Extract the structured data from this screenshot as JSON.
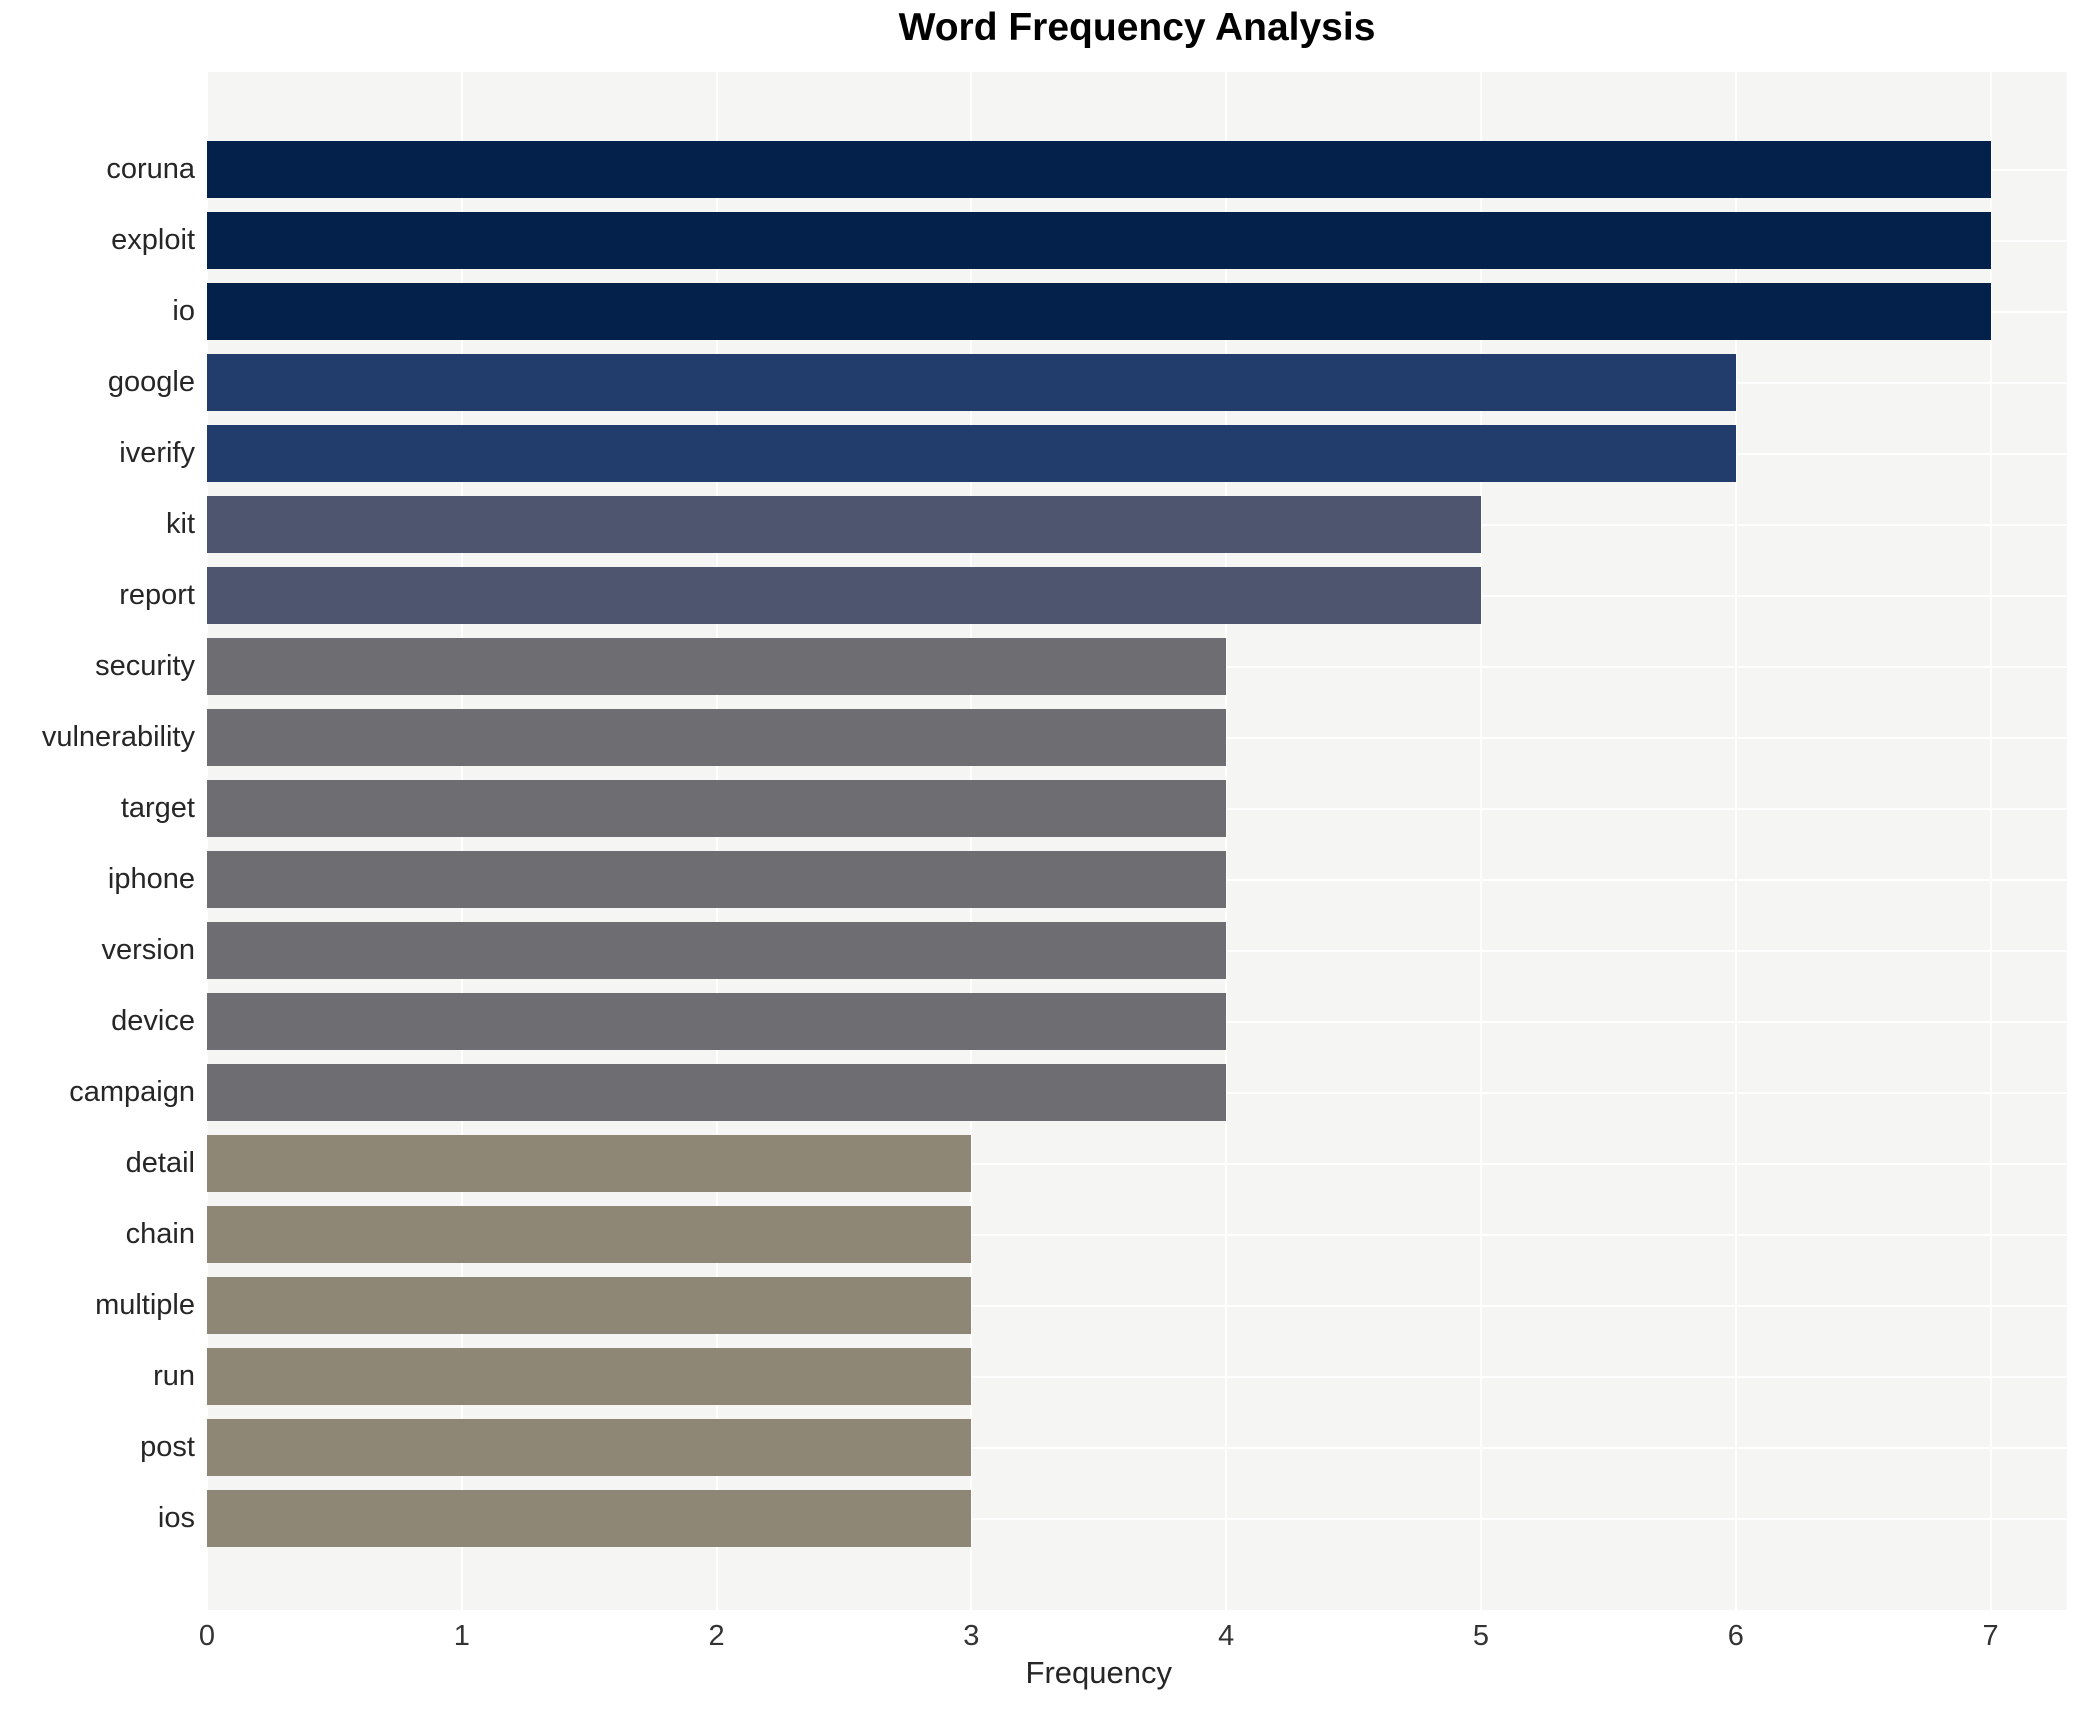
{
  "chart_data": {
    "type": "bar",
    "orientation": "horizontal",
    "title": "Word Frequency Analysis",
    "xlabel": "Frequency",
    "ylabel": "",
    "categories": [
      "coruna",
      "exploit",
      "io",
      "google",
      "iverify",
      "kit",
      "report",
      "security",
      "vulnerability",
      "target",
      "iphone",
      "version",
      "device",
      "campaign",
      "detail",
      "chain",
      "multiple",
      "run",
      "post",
      "ios"
    ],
    "values": [
      7,
      7,
      7,
      6,
      6,
      5,
      5,
      4,
      4,
      4,
      4,
      4,
      4,
      4,
      3,
      3,
      3,
      3,
      3,
      3
    ],
    "xticks": [
      0,
      1,
      2,
      3,
      4,
      5,
      6,
      7
    ],
    "xlim": [
      0,
      7.3
    ],
    "grid": true,
    "legend": false,
    "colors": {
      "plot_background": "#f5f5f3",
      "gridline": "#ffffff",
      "value_7": "#03214b",
      "value_6": "#223c6b",
      "value_5": "#4e566f",
      "value_4": "#6e6e72",
      "value_3": "#8e8776"
    }
  }
}
